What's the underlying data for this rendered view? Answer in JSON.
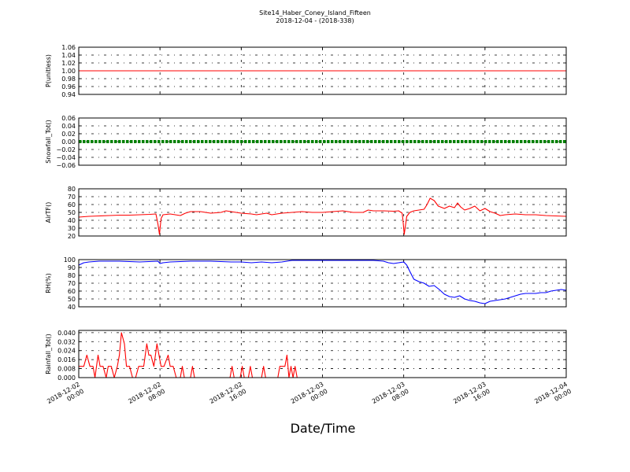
{
  "title": {
    "line1": "Site14_Haber_Coney_Island_Fifteen",
    "line2": "2018-12-04 - (2018-338)"
  },
  "xlabel": "Date/Time",
  "x_ticks": [
    {
      "line1": "2018-12-02",
      "line2": "00:00",
      "hours": 0
    },
    {
      "line1": "2018-12-02",
      "line2": "08:00",
      "hours": 8
    },
    {
      "line1": "2018-12-02",
      "line2": "16:00",
      "hours": 16
    },
    {
      "line1": "2018-12-03",
      "line2": "00:00",
      "hours": 24
    },
    {
      "line1": "2018-12-03",
      "line2": "08:00",
      "hours": 32
    },
    {
      "line1": "2018-12-03",
      "line2": "16:00",
      "hours": 40
    },
    {
      "line1": "2018-12-04",
      "line2": "00:00",
      "hours": 48
    }
  ],
  "chart_data": [
    {
      "type": "line",
      "ylabel": "P(unitless)",
      "ylim": [
        0.94,
        1.06
      ],
      "yticks": [
        "0.94",
        "0.96",
        "0.98",
        "1.00",
        "1.02",
        "1.04",
        "1.06"
      ],
      "grid": true,
      "color": "#ff0000",
      "marker": "none",
      "x_range_hours": [
        0,
        48
      ],
      "points": [
        [
          0,
          1.0
        ],
        [
          48,
          1.0
        ]
      ]
    },
    {
      "type": "line",
      "ylabel": "Snowfall_Tot()",
      "ylim": [
        -0.06,
        0.06
      ],
      "yticks": [
        "−0.06",
        "−0.04",
        "−0.02",
        "0.00",
        "0.02",
        "0.04",
        "0.06"
      ],
      "grid": true,
      "color": "#008000",
      "marker": "dot",
      "x_range_hours": [
        0,
        48
      ],
      "points": [
        [
          0,
          0.0
        ],
        [
          48,
          0.0
        ]
      ]
    },
    {
      "type": "line",
      "ylabel": "AirTF()",
      "ylim": [
        20,
        80
      ],
      "yticks": [
        "20",
        "30",
        "40",
        "50",
        "60",
        "70",
        "80"
      ],
      "grid": true,
      "color": "#ff0000",
      "marker": "none",
      "x_range_hours": [
        0,
        48
      ],
      "points": [
        [
          0,
          44
        ],
        [
          1,
          45
        ],
        [
          2,
          45.5
        ],
        [
          3,
          46
        ],
        [
          4,
          46.5
        ],
        [
          5,
          46.5
        ],
        [
          6,
          47
        ],
        [
          7,
          47.5
        ],
        [
          7.6,
          48
        ],
        [
          7.8,
          35
        ],
        [
          7.95,
          22
        ],
        [
          8.1,
          42
        ],
        [
          8.3,
          47
        ],
        [
          9,
          48
        ],
        [
          10,
          46
        ],
        [
          10.5,
          49
        ],
        [
          11,
          51
        ],
        [
          12,
          51
        ],
        [
          13,
          49
        ],
        [
          14,
          50
        ],
        [
          14.5,
          52
        ],
        [
          15,
          51
        ],
        [
          16,
          49
        ],
        [
          17,
          48
        ],
        [
          17.5,
          47
        ],
        [
          18,
          48
        ],
        [
          18.5,
          49
        ],
        [
          19,
          47
        ],
        [
          20,
          49
        ],
        [
          21,
          50
        ],
        [
          22,
          51
        ],
        [
          23,
          50
        ],
        [
          24,
          50
        ],
        [
          25,
          51
        ],
        [
          26,
          52
        ],
        [
          27,
          50
        ],
        [
          28,
          50
        ],
        [
          28.5,
          53
        ],
        [
          29,
          52
        ],
        [
          30,
          52
        ],
        [
          31,
          51.5
        ],
        [
          31.5,
          52
        ],
        [
          31.85,
          49
        ],
        [
          31.95,
          37
        ],
        [
          32.05,
          22
        ],
        [
          32.3,
          45
        ],
        [
          32.6,
          50
        ],
        [
          33,
          52
        ],
        [
          33.5,
          53
        ],
        [
          34,
          54
        ],
        [
          34.3,
          60
        ],
        [
          34.6,
          68
        ],
        [
          35,
          65
        ],
        [
          35.4,
          58
        ],
        [
          36,
          55
        ],
        [
          36.5,
          58
        ],
        [
          37,
          56
        ],
        [
          37.3,
          62
        ],
        [
          37.6,
          57
        ],
        [
          38,
          53
        ],
        [
          38.5,
          55
        ],
        [
          39,
          58
        ],
        [
          39.5,
          52
        ],
        [
          40,
          55
        ],
        [
          40.5,
          51
        ],
        [
          41,
          49
        ],
        [
          41.5,
          46
        ],
        [
          42,
          47
        ],
        [
          43,
          48
        ],
        [
          44,
          47
        ],
        [
          45,
          47
        ],
        [
          46,
          46
        ],
        [
          47,
          45.5
        ],
        [
          48,
          45
        ]
      ]
    },
    {
      "type": "line",
      "ylabel": "RH(%)",
      "ylim": [
        40,
        100
      ],
      "yticks": [
        "40",
        "50",
        "60",
        "70",
        "80",
        "90",
        "100"
      ],
      "grid": true,
      "color": "#0000ff",
      "marker": "none",
      "x_range_hours": [
        0,
        48
      ],
      "points": [
        [
          0,
          93
        ],
        [
          0.5,
          96
        ],
        [
          1,
          97
        ],
        [
          2,
          98
        ],
        [
          4,
          98
        ],
        [
          6,
          97
        ],
        [
          7.8,
          98
        ],
        [
          8,
          95
        ],
        [
          8.3,
          96
        ],
        [
          9,
          97
        ],
        [
          11,
          98
        ],
        [
          13,
          98
        ],
        [
          14,
          97.5
        ],
        [
          15,
          97
        ],
        [
          16,
          97
        ],
        [
          17,
          96
        ],
        [
          18,
          97
        ],
        [
          19,
          96
        ],
        [
          20,
          97
        ],
        [
          21,
          99
        ],
        [
          23,
          99
        ],
        [
          25,
          99
        ],
        [
          27,
          99
        ],
        [
          29,
          99
        ],
        [
          30,
          98
        ],
        [
          30.5,
          96
        ],
        [
          31,
          95
        ],
        [
          31.5,
          96
        ],
        [
          32,
          97
        ],
        [
          32.3,
          93
        ],
        [
          32.6,
          85
        ],
        [
          33,
          75
        ],
        [
          33.5,
          72
        ],
        [
          34,
          70
        ],
        [
          34.5,
          66
        ],
        [
          35,
          67
        ],
        [
          35.5,
          62
        ],
        [
          36,
          56
        ],
        [
          36.5,
          53
        ],
        [
          37,
          52
        ],
        [
          37.5,
          54
        ],
        [
          38,
          50
        ],
        [
          38.5,
          48
        ],
        [
          39,
          47
        ],
        [
          39.5,
          45
        ],
        [
          40,
          44
        ],
        [
          40.5,
          47
        ],
        [
          41,
          48
        ],
        [
          41.5,
          49
        ],
        [
          42,
          50
        ],
        [
          42.5,
          52
        ],
        [
          43,
          54
        ],
        [
          43.5,
          56
        ],
        [
          44,
          57
        ],
        [
          45,
          57
        ],
        [
          45.5,
          58
        ],
        [
          46,
          58
        ],
        [
          46.5,
          60
        ],
        [
          47,
          61
        ],
        [
          47.5,
          62
        ],
        [
          48,
          61
        ]
      ]
    },
    {
      "type": "line",
      "ylabel": "Rainfall_Tot()",
      "ylim": [
        0,
        0.042
      ],
      "yticks": [
        "0.000",
        "0.008",
        "0.016",
        "0.024",
        "0.032",
        "0.040"
      ],
      "grid": true,
      "color": "#ff0000",
      "marker": "none",
      "x_range_hours": [
        0,
        48
      ],
      "points": [
        [
          0,
          0.01
        ],
        [
          0.5,
          0.01
        ],
        [
          0.8,
          0.02
        ],
        [
          1.1,
          0.01
        ],
        [
          1.4,
          0.01
        ],
        [
          1.6,
          0.0
        ],
        [
          1.9,
          0.02
        ],
        [
          2.1,
          0.01
        ],
        [
          2.4,
          0.01
        ],
        [
          2.7,
          0.0
        ],
        [
          2.9,
          0.01
        ],
        [
          3.2,
          0.01
        ],
        [
          3.5,
          0.0
        ],
        [
          3.8,
          0.01
        ],
        [
          4.0,
          0.02
        ],
        [
          4.2,
          0.04
        ],
        [
          4.5,
          0.03
        ],
        [
          4.7,
          0.01
        ],
        [
          5.0,
          0.01
        ],
        [
          5.3,
          0.0
        ],
        [
          5.6,
          0.0
        ],
        [
          5.9,
          0.01
        ],
        [
          6.1,
          0.01
        ],
        [
          6.4,
          0.01
        ],
        [
          6.7,
          0.03
        ],
        [
          6.9,
          0.02
        ],
        [
          7.1,
          0.02
        ],
        [
          7.4,
          0.01
        ],
        [
          7.7,
          0.03
        ],
        [
          7.9,
          0.02
        ],
        [
          8.1,
          0.01
        ],
        [
          8.4,
          0.01
        ],
        [
          8.8,
          0.02
        ],
        [
          9.0,
          0.01
        ],
        [
          9.3,
          0.01
        ],
        [
          9.6,
          0.0
        ],
        [
          10.0,
          0.0
        ],
        [
          10.2,
          0.01
        ],
        [
          10.4,
          0.0
        ],
        [
          11.0,
          0.0
        ],
        [
          11.2,
          0.01
        ],
        [
          11.4,
          0.0
        ],
        [
          14.0,
          0.0
        ],
        [
          14.9,
          0.0
        ],
        [
          15.1,
          0.01
        ],
        [
          15.3,
          0.0
        ],
        [
          15.9,
          0.0
        ],
        [
          16.1,
          0.01
        ],
        [
          16.3,
          0.0
        ],
        [
          16.7,
          0.0
        ],
        [
          16.9,
          0.01
        ],
        [
          17.1,
          0.0
        ],
        [
          18.0,
          0.0
        ],
        [
          18.2,
          0.01
        ],
        [
          18.4,
          0.0
        ],
        [
          19.6,
          0.0
        ],
        [
          19.8,
          0.01
        ],
        [
          20.3,
          0.01
        ],
        [
          20.5,
          0.02
        ],
        [
          20.7,
          0.0
        ],
        [
          20.9,
          0.01
        ],
        [
          21.1,
          0.0
        ],
        [
          21.3,
          0.01
        ],
        [
          21.5,
          0.0
        ],
        [
          48,
          0.0
        ]
      ]
    }
  ]
}
